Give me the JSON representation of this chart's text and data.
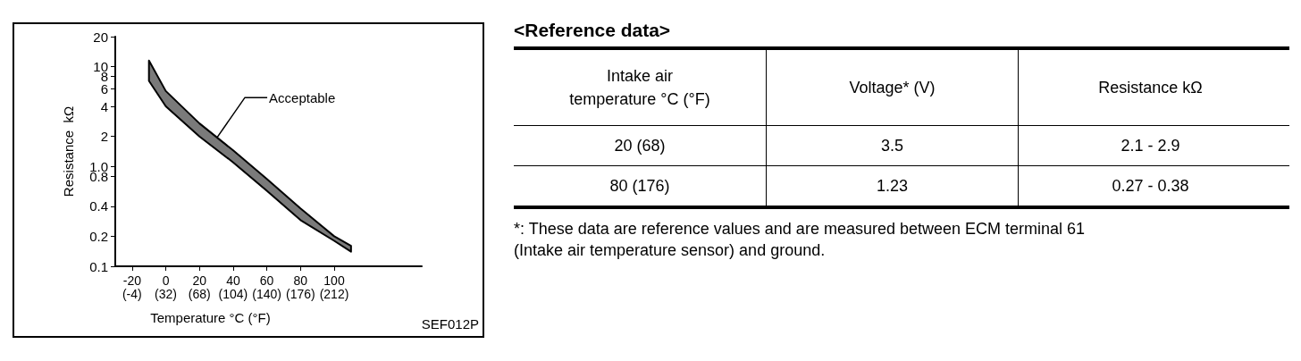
{
  "chart_data": [
    {
      "type": "line",
      "xlabel": "Temperature °C (°F)",
      "ylabel": "Resistance  kΩ",
      "log": "y",
      "xlim": [
        -30,
        152
      ],
      "ylim": [
        0.1,
        20
      ],
      "xticks": [
        -20,
        0,
        20,
        40,
        60,
        80,
        100
      ],
      "x2lim": [
        -22,
        305.6
      ],
      "x2ticks": [
        {
          "value": -4,
          "label": "(-4)"
        },
        {
          "value": 32,
          "label": "(32)"
        },
        {
          "value": 68,
          "label": "(68)"
        },
        {
          "value": 104,
          "label": "(104)"
        },
        {
          "value": 140,
          "label": "(140)"
        },
        {
          "value": 176,
          "label": "(176)"
        },
        {
          "value": 212,
          "label": "(212)"
        }
      ],
      "yticks": [
        0.1,
        0.2,
        0.4,
        0.8,
        {
          "value": 1,
          "label": "1.0"
        },
        2,
        4,
        6,
        8,
        10,
        20
      ],
      "x": [
        -10,
        0,
        20,
        40,
        60,
        80,
        100,
        110
      ],
      "series": [
        {
          "color": "#000000",
          "values": [
            null,
            null,
            null,
            null,
            null,
            null,
            null,
            null
          ],
          "lower": [
            7.2,
            4.0,
            2.0,
            1.1,
            0.57,
            0.29,
            0.18,
            0.14
          ],
          "upper": [
            11.5,
            5.7,
            2.7,
            1.45,
            0.75,
            0.38,
            0.2,
            0.16
          ]
        }
      ],
      "annotations": [
        {
          "text": "Acceptable",
          "x": 30,
          "y": 1.9
        },
        "SEF012P"
      ]
    },
    {
      "type": "other",
      "title": "<Reference data>",
      "categories": [
        "Intake air\ntemperature   °C (°F)",
        "Voltage*   (V)",
        "Resistance   kΩ"
      ],
      "cell_labels": [
        [
          "20 (68)",
          "3.5",
          "2.1 - 2.9"
        ],
        [
          "80 (176)",
          "1.23",
          "0.27 - 0.38"
        ]
      ],
      "annotations": [
        "*: These data are reference values and are measured between ECM terminal 61\n(Intake air temperature sensor) and ground."
      ]
    }
  ]
}
